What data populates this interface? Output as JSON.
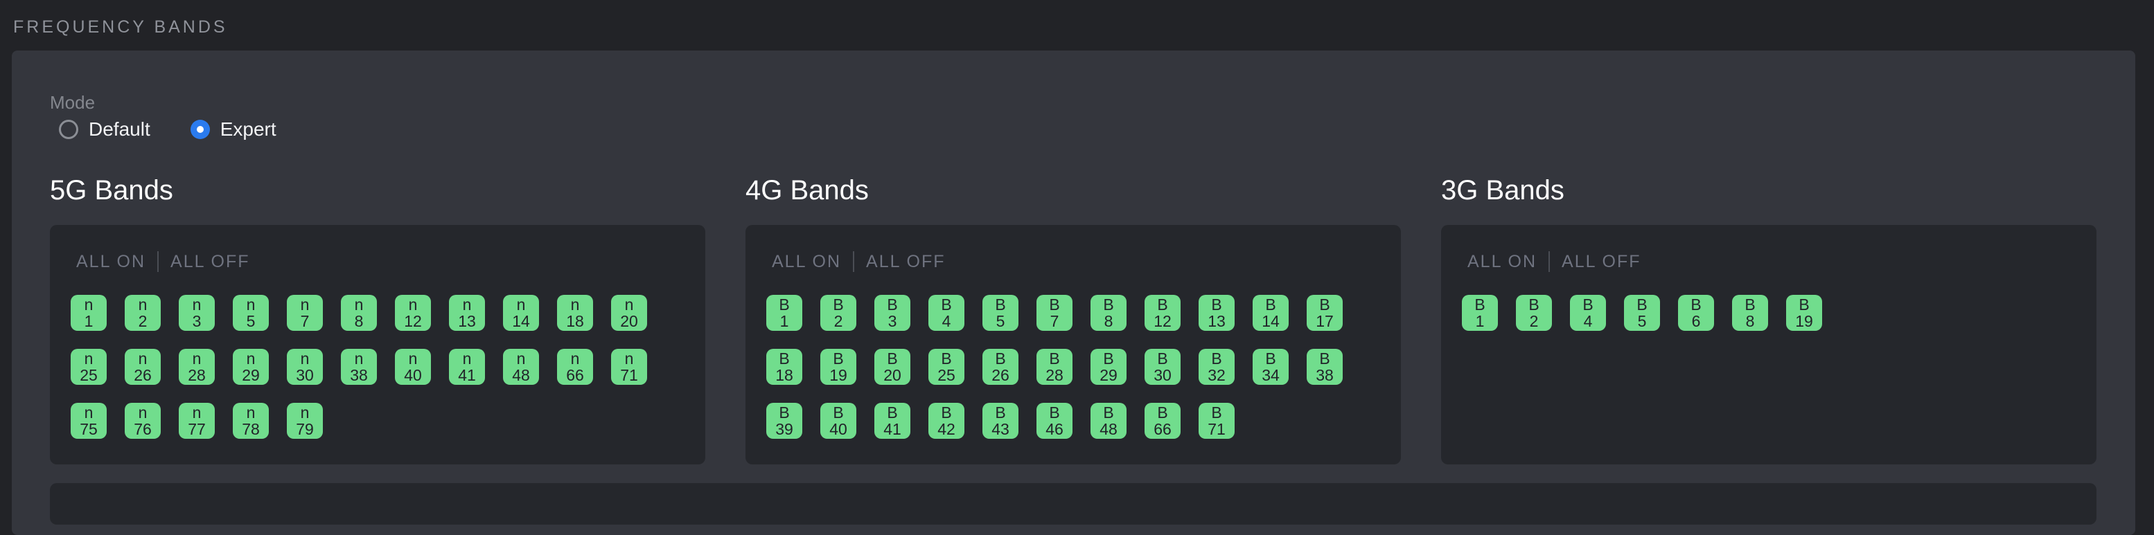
{
  "header": {
    "title": "FREQUENCY BANDS"
  },
  "mode": {
    "label": "Mode",
    "options": [
      {
        "label": "Default",
        "selected": false
      },
      {
        "label": "Expert",
        "selected": true
      }
    ]
  },
  "panel_controls": {
    "all_on": "ALL ON",
    "all_off": "ALL OFF"
  },
  "sections": [
    {
      "id": "5g",
      "title": "5G Bands",
      "prefix": "n",
      "bands": [
        1,
        2,
        3,
        5,
        7,
        8,
        12,
        13,
        14,
        18,
        20,
        25,
        26,
        28,
        29,
        30,
        38,
        40,
        41,
        48,
        66,
        71,
        75,
        76,
        77,
        78,
        79
      ]
    },
    {
      "id": "4g",
      "title": "4G Bands",
      "prefix": "B",
      "bands": [
        1,
        2,
        3,
        4,
        5,
        7,
        8,
        12,
        13,
        14,
        17,
        18,
        19,
        20,
        25,
        26,
        28,
        29,
        30,
        32,
        34,
        38,
        39,
        40,
        41,
        42,
        43,
        46,
        48,
        66,
        71
      ]
    },
    {
      "id": "3g",
      "title": "3G Bands",
      "prefix": "B",
      "bands": [
        1,
        2,
        4,
        5,
        6,
        8,
        19
      ]
    }
  ],
  "colors": {
    "page_background": "#222327",
    "card_background": "#34363d",
    "panel_background": "#25272c",
    "band_enabled": "#71dd8d",
    "band_text": "#212429",
    "radio_selected": "#2b7bee",
    "muted_text": "#6f7380"
  }
}
